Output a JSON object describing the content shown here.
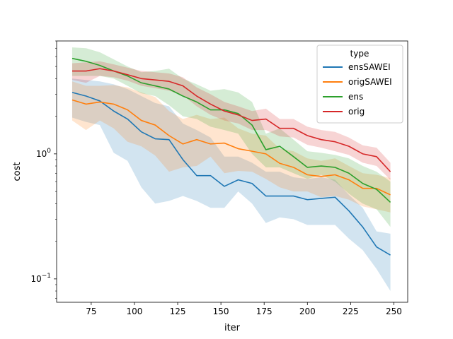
{
  "chart_data": {
    "type": "line",
    "title": "",
    "xlabel": "iter",
    "ylabel": "cost",
    "xlim": [
      55,
      258
    ],
    "ylim": [
      0.065,
      8.0
    ],
    "yscale": "log",
    "xticks": [
      75,
      100,
      125,
      150,
      175,
      200,
      225,
      250
    ],
    "yticks": [
      {
        "value": 0.1,
        "label": "10",
        "exp": "−1"
      },
      {
        "value": 1.0,
        "label": "10",
        "exp": "0"
      }
    ],
    "grid": false,
    "legend": {
      "title": "type",
      "placement": "top-right"
    },
    "x": [
      64,
      72,
      80,
      88,
      96,
      104,
      112,
      120,
      128,
      136,
      144,
      152,
      160,
      168,
      176,
      184,
      192,
      200,
      208,
      216,
      224,
      232,
      240,
      248
    ],
    "series": [
      {
        "name": "ensSAWEI",
        "color": "#1f77b4",
        "values": [
          3.1,
          2.9,
          2.65,
          2.2,
          1.9,
          1.5,
          1.32,
          1.3,
          0.9,
          0.67,
          0.67,
          0.55,
          0.62,
          0.58,
          0.46,
          0.46,
          0.46,
          0.43,
          0.44,
          0.45,
          0.35,
          0.26,
          0.18,
          0.155
        ],
        "lower": [
          1.95,
          1.8,
          1.7,
          1.02,
          0.88,
          0.54,
          0.4,
          0.42,
          0.46,
          0.42,
          0.37,
          0.37,
          0.5,
          0.4,
          0.28,
          0.31,
          0.3,
          0.27,
          0.27,
          0.27,
          0.21,
          0.17,
          0.12,
          0.08
        ],
        "upper": [
          4.0,
          3.9,
          3.8,
          3.6,
          3.3,
          2.9,
          2.55,
          2.4,
          1.75,
          1.55,
          1.35,
          0.95,
          0.95,
          0.85,
          0.72,
          0.72,
          0.65,
          0.63,
          0.65,
          0.62,
          0.47,
          0.37,
          0.24,
          0.23
        ]
      },
      {
        "name": "origSAWEI",
        "color": "#ff7f0e",
        "values": [
          2.7,
          2.5,
          2.6,
          2.5,
          2.25,
          1.85,
          1.7,
          1.4,
          1.2,
          1.3,
          1.2,
          1.22,
          1.1,
          1.05,
          1.0,
          0.84,
          0.78,
          0.68,
          0.66,
          0.68,
          0.62,
          0.53,
          0.53,
          0.47
        ],
        "lower": [
          1.85,
          1.55,
          1.85,
          1.6,
          1.25,
          1.15,
          0.97,
          0.72,
          0.78,
          0.8,
          0.95,
          0.7,
          0.73,
          0.72,
          0.63,
          0.54,
          0.5,
          0.5,
          0.45,
          0.46,
          0.43,
          0.38,
          0.36,
          0.34
        ],
        "upper": [
          3.8,
          3.5,
          3.5,
          3.55,
          3.4,
          3.1,
          2.85,
          2.2,
          1.9,
          2.05,
          1.9,
          1.95,
          1.6,
          1.45,
          1.4,
          1.1,
          1.05,
          0.92,
          0.88,
          0.92,
          0.8,
          0.7,
          0.68,
          0.64
        ]
      },
      {
        "name": "ens",
        "color": "#2ca02c",
        "values": [
          5.8,
          5.5,
          5.1,
          4.6,
          4.2,
          3.7,
          3.5,
          3.3,
          2.9,
          2.6,
          2.25,
          2.25,
          2.1,
          1.7,
          1.08,
          1.15,
          0.95,
          0.78,
          0.8,
          0.78,
          0.7,
          0.58,
          0.52,
          0.41
        ],
        "lower": [
          4.2,
          4.2,
          4.2,
          4.0,
          3.5,
          3.05,
          2.9,
          2.45,
          2.0,
          1.9,
          1.65,
          1.55,
          1.45,
          1.0,
          0.78,
          0.78,
          0.7,
          0.63,
          0.68,
          0.6,
          0.48,
          0.4,
          0.36,
          0.26
        ],
        "upper": [
          7.1,
          7.0,
          6.5,
          5.7,
          5.0,
          4.5,
          4.6,
          4.8,
          4.0,
          3.6,
          3.2,
          3.3,
          3.1,
          2.6,
          1.45,
          1.6,
          1.3,
          1.05,
          1.02,
          0.98,
          0.92,
          0.8,
          0.72,
          0.6
        ]
      },
      {
        "name": "orig",
        "color": "#d62728",
        "values": [
          4.6,
          4.6,
          4.8,
          4.6,
          4.3,
          4.0,
          3.9,
          3.8,
          3.5,
          2.9,
          2.5,
          2.2,
          2.05,
          1.85,
          1.9,
          1.6,
          1.6,
          1.4,
          1.3,
          1.25,
          1.15,
          1.0,
          0.95,
          0.72
        ],
        "lower": [
          3.9,
          3.7,
          4.2,
          4.1,
          3.85,
          3.5,
          3.35,
          3.2,
          2.95,
          2.4,
          2.05,
          1.85,
          1.75,
          1.55,
          1.55,
          1.38,
          1.35,
          1.18,
          1.12,
          1.05,
          0.98,
          0.85,
          0.8,
          0.62
        ],
        "upper": [
          5.3,
          5.4,
          5.5,
          5.2,
          4.9,
          4.6,
          4.5,
          4.4,
          4.1,
          3.4,
          3.0,
          2.6,
          2.4,
          2.2,
          2.3,
          1.9,
          1.9,
          1.65,
          1.55,
          1.5,
          1.35,
          1.17,
          1.12,
          0.85
        ]
      }
    ]
  }
}
